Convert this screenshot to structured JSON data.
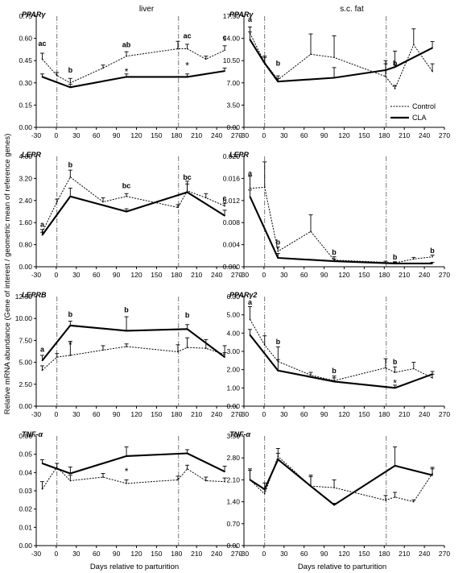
{
  "figure": {
    "column_titles": [
      "liver",
      "s.c. fat"
    ],
    "ylabel": "Relative mRNA abundance (Gene of interest / geometric mean of reference genes)",
    "xlabel": "Days relative to parturition",
    "legend": {
      "placement": "right, inside s.c. fat PPARγ panel",
      "entries": [
        "Control",
        "CLA"
      ]
    },
    "vertical_reference_lines_days": [
      1,
      183
    ]
  },
  "chart_data": [
    {
      "type": "line",
      "panel": "liver",
      "title": "PPARγ",
      "xlim": [
        -30,
        270
      ],
      "xticks": [
        -30,
        0,
        30,
        60,
        90,
        120,
        150,
        180,
        210,
        240,
        270
      ],
      "ylim": [
        0,
        0.75
      ],
      "yticks": [
        "0.00",
        "0.15",
        "0.30",
        "0.45",
        "0.60",
        "0.75"
      ],
      "series": [
        {
          "name": "Control",
          "x": [
            -21,
            1,
            21,
            70,
            105,
            182,
            196,
            224,
            252
          ],
          "y": [
            0.46,
            0.35,
            0.3,
            0.4,
            0.48,
            0.53,
            0.53,
            0.46,
            0.52
          ],
          "err": [
            0.04,
            0.02,
            0.03,
            0.02,
            0.03,
            0.05,
            0.03,
            0.02,
            0.03
          ]
        },
        {
          "name": "CLA",
          "x": [
            -21,
            21,
            105,
            196,
            252
          ],
          "y": [
            0.34,
            0.27,
            0.34,
            0.34,
            0.38
          ],
          "err": [
            0.02,
            0.02,
            0.02,
            0.02,
            0.02
          ]
        }
      ],
      "annotations": [
        {
          "text": "ac",
          "x": -21,
          "y": 0.55
        },
        {
          "text": "b",
          "x": 21,
          "y": 0.37
        },
        {
          "text": "ab",
          "x": 105,
          "y": 0.54
        },
        {
          "text": "ac",
          "x": 196,
          "y": 0.6
        },
        {
          "text": "c",
          "x": 252,
          "y": 0.59
        },
        {
          "text": "*",
          "x": 105,
          "y": 0.38
        },
        {
          "text": "*",
          "x": 196,
          "y": 0.42
        }
      ]
    },
    {
      "type": "line",
      "panel": "s.c. fat",
      "title": "PPARγ",
      "xlim": [
        -30,
        270
      ],
      "xticks": [
        -30,
        0,
        30,
        60,
        90,
        120,
        150,
        180,
        210,
        240,
        270
      ],
      "ylim": [
        0,
        17.5
      ],
      "yticks": [
        "0.00",
        "3.50",
        "7.00",
        "10.50",
        "14.00",
        "17.50"
      ],
      "series": [
        {
          "name": "Control",
          "x": [
            -21,
            1,
            21,
            70,
            105,
            182,
            196,
            224,
            252
          ],
          "y": [
            14.8,
            10.2,
            7.5,
            11.5,
            11.0,
            8.0,
            6.1,
            13.0,
            8.8
          ],
          "err": [
            1.0,
            1.0,
            0.6,
            3.2,
            3.4,
            2.0,
            0.5,
            2.5,
            1.2
          ]
        },
        {
          "name": "CLA",
          "x": [
            -21,
            1,
            21,
            105,
            182,
            196,
            252
          ],
          "y": [
            13.8,
            10.1,
            7.2,
            7.8,
            9.0,
            9.5,
            12.5
          ],
          "err": [
            1.2,
            0.9,
            0.5,
            1.6,
            1.5,
            2.5,
            1.0
          ]
        }
      ],
      "annotations": [
        {
          "text": "a",
          "x": -21,
          "y": 16.6
        },
        {
          "text": "b",
          "x": 21,
          "y": 9.7
        },
        {
          "text": "b",
          "x": 196,
          "y": 9.7
        }
      ]
    },
    {
      "type": "line",
      "panel": "liver",
      "title": "LEPR",
      "xlim": [
        -30,
        270
      ],
      "xticks": [
        -30,
        0,
        30,
        60,
        90,
        120,
        150,
        180,
        210,
        240,
        270
      ],
      "ylim": [
        0,
        4.0
      ],
      "yticks": [
        "0.00",
        "0.80",
        "1.60",
        "2.40",
        "3.20",
        "4.00"
      ],
      "series": [
        {
          "name": "Control",
          "x": [
            -21,
            1,
            21,
            70,
            105,
            182,
            196,
            224,
            252
          ],
          "y": [
            1.25,
            2.35,
            3.25,
            2.35,
            2.55,
            2.15,
            2.75,
            2.5,
            2.2
          ],
          "err": [
            0.1,
            0.1,
            0.25,
            0.15,
            0.1,
            0.1,
            0.35,
            0.15,
            0.1
          ]
        },
        {
          "name": "CLA",
          "x": [
            -21,
            21,
            105,
            196,
            252
          ],
          "y": [
            1.15,
            2.55,
            2.0,
            2.7,
            1.85
          ],
          "err": [
            0.1,
            0.3,
            0.1,
            0.3,
            0.2
          ]
        }
      ],
      "annotations": [
        {
          "text": "a",
          "x": -21,
          "y": 1.45
        },
        {
          "text": "b",
          "x": 21,
          "y": 3.6
        },
        {
          "text": "bc",
          "x": 105,
          "y": 2.85
        },
        {
          "text": "bc",
          "x": 196,
          "y": 3.15
        },
        {
          "text": "c",
          "x": 252,
          "y": 2.4
        }
      ]
    },
    {
      "type": "line",
      "panel": "s.c. fat",
      "title": "LEPR",
      "xlim": [
        -30,
        270
      ],
      "xticks": [
        -30,
        0,
        30,
        60,
        90,
        120,
        150,
        180,
        210,
        240,
        270
      ],
      "ylim": [
        0,
        0.02
      ],
      "yticks": [
        "0.000",
        "0.004",
        "0.008",
        "0.012",
        "0.016",
        "0.020"
      ],
      "series": [
        {
          "name": "Control",
          "x": [
            -21,
            1,
            21,
            70,
            105,
            182,
            196,
            224,
            252
          ],
          "y": [
            0.0142,
            0.0144,
            0.0028,
            0.0064,
            0.0012,
            0.0008,
            0.0007,
            0.0014,
            0.0018
          ],
          "err": [
            0.0022,
            0.0046,
            0.0008,
            0.003,
            0.0006,
            0.0002,
            0.0002,
            0.0003,
            0.0003
          ]
        },
        {
          "name": "CLA",
          "x": [
            -21,
            21,
            105,
            196,
            252
          ],
          "y": [
            0.0127,
            0.0016,
            0.001,
            0.0006,
            0.0006
          ],
          "err": [
            0.0012,
            0.0008,
            0.0004,
            0.0002,
            0.0002
          ]
        }
      ],
      "annotations": [
        {
          "text": "a",
          "x": -21,
          "y": 0.0165
        },
        {
          "text": "b",
          "x": 21,
          "y": 0.004
        },
        {
          "text": "b",
          "x": 105,
          "y": 0.0022
        },
        {
          "text": "b",
          "x": 196,
          "y": 0.0013
        },
        {
          "text": "b",
          "x": 252,
          "y": 0.0025
        }
      ]
    },
    {
      "type": "line",
      "panel": "liver",
      "title": "LEPRB",
      "xlim": [
        -30,
        270
      ],
      "xticks": [
        -30,
        0,
        30,
        60,
        90,
        120,
        150,
        180,
        210,
        240,
        270
      ],
      "ylim": [
        0,
        12.5
      ],
      "yticks": [
        "0.00",
        "2.50",
        "5.00",
        "7.50",
        "10.00",
        "12.50"
      ],
      "series": [
        {
          "name": "Control",
          "x": [
            -21,
            1,
            21,
            70,
            105,
            182,
            196,
            224,
            252
          ],
          "y": [
            4.1,
            5.6,
            5.8,
            6.4,
            6.8,
            6.2,
            6.7,
            6.6,
            5.9
          ],
          "err": [
            0.5,
            0.4,
            1.6,
            0.5,
            0.3,
            0.8,
            1.1,
            1.0,
            1.0
          ]
        },
        {
          "name": "CLA",
          "x": [
            -21,
            21,
            105,
            196,
            252
          ],
          "y": [
            5.2,
            9.2,
            8.6,
            8.8,
            5.6
          ],
          "err": [
            0.6,
            0.5,
            1.6,
            0.5,
            0.5
          ]
        }
      ],
      "annotations": [
        {
          "text": "a",
          "x": -21,
          "y": 6.2
        },
        {
          "text": "b",
          "x": 21,
          "y": 10.2
        },
        {
          "text": "b",
          "x": 105,
          "y": 10.7
        },
        {
          "text": "b",
          "x": 196,
          "y": 10.1
        },
        {
          "text": "*",
          "x": 21,
          "y": 7.1
        }
      ]
    },
    {
      "type": "line",
      "panel": "s.c. fat",
      "title": "PPARγ2",
      "xlim": [
        -30,
        270
      ],
      "xticks": [
        -30,
        0,
        30,
        60,
        90,
        120,
        150,
        180,
        210,
        240,
        270
      ],
      "ylim": [
        0,
        6.0
      ],
      "yticks": [
        "0.00",
        "1.00",
        "2.00",
        "3.00",
        "4.00",
        "5.00",
        "6.00"
      ],
      "series": [
        {
          "name": "Control",
          "x": [
            -21,
            1,
            21,
            70,
            105,
            182,
            196,
            224,
            252
          ],
          "y": [
            4.75,
            3.35,
            2.45,
            1.7,
            1.4,
            2.1,
            1.85,
            2.05,
            1.55
          ],
          "err": [
            0.7,
            0.5,
            0.8,
            0.15,
            0.25,
            0.5,
            0.3,
            0.35,
            0.2
          ]
        },
        {
          "name": "CLA",
          "x": [
            -21,
            21,
            105,
            196,
            252
          ],
          "y": [
            3.9,
            1.95,
            1.35,
            1.0,
            1.75
          ],
          "err": [
            0.3,
            0.6,
            0.2,
            0.15,
            0.15
          ]
        }
      ],
      "annotations": [
        {
          "text": "a",
          "x": -21,
          "y": 5.55
        },
        {
          "text": "b",
          "x": 21,
          "y": 3.4
        },
        {
          "text": "b",
          "x": 105,
          "y": 1.8
        },
        {
          "text": "b",
          "x": 196,
          "y": 2.3
        },
        {
          "text": "*",
          "x": 196,
          "y": 1.3
        }
      ]
    },
    {
      "type": "line",
      "panel": "liver",
      "title": "TNF-α",
      "xlim": [
        -30,
        270
      ],
      "xticks": [
        -30,
        0,
        30,
        60,
        90,
        120,
        150,
        180,
        210,
        240,
        270
      ],
      "ylim": [
        0,
        0.06
      ],
      "yticks": [
        "0.00",
        "0.01",
        "0.02",
        "0.03",
        "0.04",
        "0.05",
        "0.06"
      ],
      "series": [
        {
          "name": "Control",
          "x": [
            -21,
            1,
            21,
            70,
            105,
            182,
            196,
            224,
            252
          ],
          "y": [
            0.031,
            0.043,
            0.0355,
            0.0375,
            0.034,
            0.036,
            0.042,
            0.0355,
            0.035
          ],
          "err": [
            0.004,
            0.002,
            0.003,
            0.002,
            0.002,
            0.002,
            0.002,
            0.002,
            0.002
          ]
        },
        {
          "name": "CLA",
          "x": [
            -21,
            21,
            105,
            196,
            252
          ],
          "y": [
            0.045,
            0.0395,
            0.049,
            0.0505,
            0.0405
          ],
          "err": [
            0.002,
            0.0035,
            0.005,
            0.002,
            0.003
          ]
        }
      ],
      "annotations": [
        {
          "text": "*",
          "x": 105,
          "y": 0.041
        }
      ]
    },
    {
      "type": "line",
      "panel": "s.c. fat",
      "title": "TNF-α",
      "xlim": [
        -30,
        270
      ],
      "xticks": [
        -30,
        0,
        30,
        60,
        90,
        120,
        150,
        180,
        210,
        240,
        270
      ],
      "ylim": [
        0,
        3.5
      ],
      "yticks": [
        "0.00",
        "0.70",
        "1.40",
        "2.10",
        "2.80",
        "3.50"
      ],
      "series": [
        {
          "name": "Control",
          "x": [
            -21,
            1,
            21,
            70,
            105,
            182,
            196,
            224,
            252
          ],
          "y": [
            2.1,
            1.65,
            2.85,
            1.9,
            1.85,
            1.45,
            1.55,
            1.4,
            2.3
          ],
          "err": [
            0.35,
            0.15,
            0.25,
            0.3,
            0.25,
            0.15,
            0.15,
            0.06,
            0.2
          ]
        },
        {
          "name": "CLA",
          "x": [
            -21,
            1,
            21,
            70,
            105,
            196,
            252
          ],
          "y": [
            2.1,
            1.8,
            2.75,
            1.9,
            1.3,
            2.55,
            2.25
          ],
          "err": [
            0.3,
            0.2,
            0.2,
            0.35,
            0.05,
            0.6,
            0.2
          ]
        }
      ],
      "annotations": []
    }
  ]
}
